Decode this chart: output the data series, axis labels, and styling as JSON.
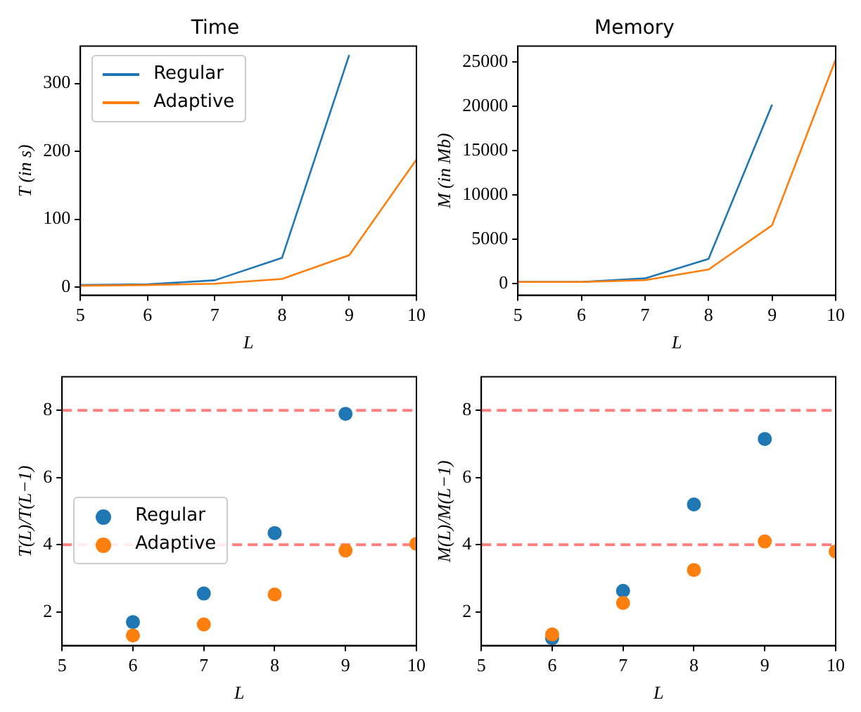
{
  "chart_data": [
    {
      "type": "line",
      "title": "Time",
      "xlabel": "L",
      "ylabel": "T (in s)",
      "x": [
        5,
        6,
        7,
        8,
        9,
        10
      ],
      "xlim": [
        5,
        10
      ],
      "xticks": [
        5,
        6,
        7,
        8,
        9,
        10
      ],
      "ylim": [
        -12,
        355
      ],
      "yticks": [
        0,
        100,
        200,
        300
      ],
      "grid": false,
      "legend": "top left",
      "marker": "none",
      "series": [
        {
          "name": "Regular",
          "color": "#1f77b4",
          "x": [
            5,
            6,
            7,
            8,
            9
          ],
          "values": [
            3,
            4,
            10,
            43,
            342
          ]
        },
        {
          "name": "Adaptive",
          "color": "#ff7f0e",
          "values": [
            2,
            3,
            5,
            12,
            47,
            188
          ]
        }
      ]
    },
    {
      "type": "line",
      "title": "Memory",
      "xlabel": "L",
      "ylabel": "M (in Mb)",
      "x": [
        5,
        6,
        7,
        8,
        9,
        10
      ],
      "xlim": [
        5,
        10
      ],
      "xticks": [
        5,
        6,
        7,
        8,
        9,
        10
      ],
      "ylim": [
        -1300,
        26800
      ],
      "yticks": [
        0,
        5000,
        10000,
        15000,
        20000,
        25000
      ],
      "grid": false,
      "marker": "none",
      "series": [
        {
          "color": "#1f77b4",
          "x": [
            5,
            6,
            7,
            8,
            9
          ],
          "values": [
            200,
            200,
            600,
            2800,
            20200
          ]
        },
        {
          "color": "#ff7f0e",
          "values": [
            200,
            200,
            400,
            1600,
            6600,
            25300
          ]
        }
      ]
    },
    {
      "type": "scatter",
      "xlabel": "L",
      "ylabel": "T(L)/T(L−1)",
      "x": [
        6,
        7,
        8,
        9,
        10
      ],
      "xlim": [
        5,
        10
      ],
      "xticks": [
        5,
        6,
        7,
        8,
        9,
        10
      ],
      "ylim": [
        1,
        9
      ],
      "yticks": [
        2,
        4,
        6,
        8
      ],
      "grid": false,
      "legend": "left",
      "marker": "circle",
      "series": [
        {
          "name": "Regular",
          "color": "#1f77b4",
          "x": [
            6,
            7,
            8,
            9
          ],
          "values": [
            1.7,
            2.55,
            4.35,
            7.9
          ]
        },
        {
          "name": "Adaptive",
          "color": "#ff7f0e",
          "values": [
            1.3,
            1.63,
            2.52,
            3.83,
            4.03
          ]
        }
      ],
      "ref_lines": [
        {
          "axis": "y",
          "value": 4,
          "color": "#ff7f7f",
          "line_style": "dashed"
        },
        {
          "axis": "y",
          "value": 8,
          "color": "#ff7f7f",
          "line_style": "dashed"
        }
      ]
    },
    {
      "type": "scatter",
      "xlabel": "L",
      "ylabel": "M(L)/M(L−1)",
      "x": [
        6,
        7,
        8,
        9,
        10
      ],
      "xlim": [
        5,
        10
      ],
      "xticks": [
        5,
        6,
        7,
        8,
        9,
        10
      ],
      "ylim": [
        1,
        9
      ],
      "yticks": [
        2,
        4,
        6,
        8
      ],
      "grid": false,
      "marker": "circle",
      "series": [
        {
          "color": "#1f77b4",
          "x": [
            6,
            7,
            8,
            9
          ],
          "values": [
            1.22,
            2.63,
            5.2,
            7.15
          ]
        },
        {
          "color": "#ff7f0e",
          "values": [
            1.33,
            2.27,
            3.25,
            4.1,
            3.8
          ]
        }
      ],
      "ref_lines": [
        {
          "axis": "y",
          "value": 4,
          "color": "#ff7f7f",
          "line_style": "dashed"
        },
        {
          "axis": "y",
          "value": 8,
          "color": "#ff7f7f",
          "line_style": "dashed"
        }
      ]
    }
  ]
}
